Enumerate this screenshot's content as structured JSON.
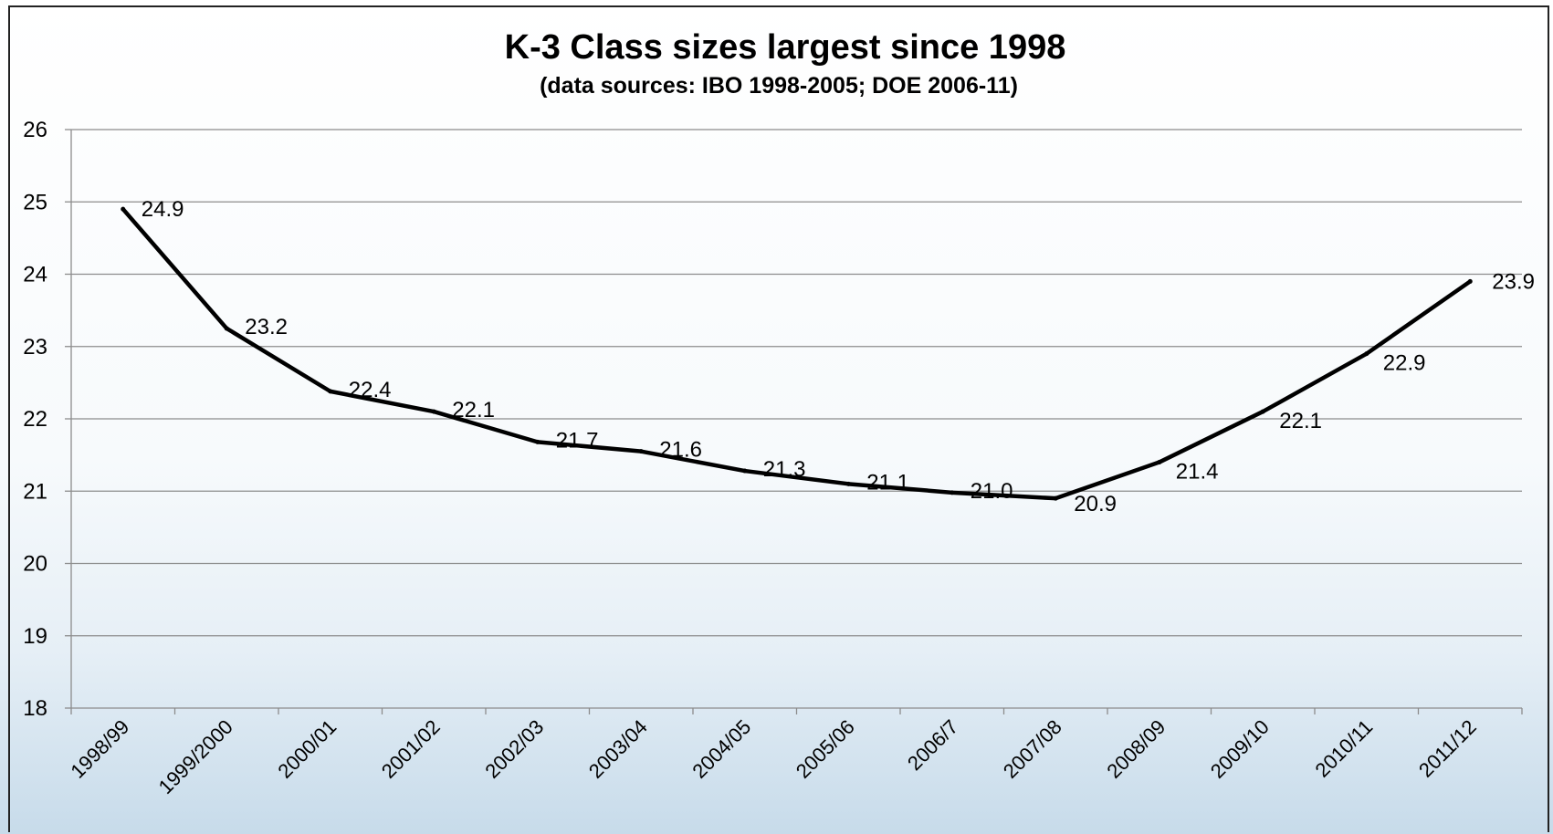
{
  "chart_data": {
    "type": "line",
    "title": "K-3 Class sizes largest since 1998",
    "subtitle": "(data sources: IBO 1998-2005; DOE 2006-11)",
    "xlabel": "",
    "ylabel": "",
    "categories": [
      "1998/99",
      "1999/2000",
      "2000/01",
      "2001/02",
      "2002/03",
      "2003/04",
      "2004/05",
      "2005/06",
      "2006/7",
      "2007/08",
      "2008/09",
      "2009/10",
      "2010/11",
      "2011/12"
    ],
    "series": [
      {
        "values": [
          24.9,
          23.25,
          22.38,
          22.1,
          21.68,
          21.55,
          21.28,
          21.1,
          20.98,
          20.9,
          21.4,
          22.1,
          22.9,
          23.9
        ],
        "labels": [
          "24.9",
          "23.2",
          "22.4",
          "22.1",
          "21.7",
          "21.6",
          "21.3",
          "21.1",
          "21.0",
          "20.9",
          "21.4",
          "22.1",
          "22.9",
          "23.9"
        ],
        "color": "#000000"
      }
    ],
    "ylim": [
      18,
      26
    ],
    "yticks": [
      18,
      19,
      20,
      21,
      22,
      23,
      24,
      25,
      26
    ],
    "grid": true,
    "legend": "none"
  }
}
